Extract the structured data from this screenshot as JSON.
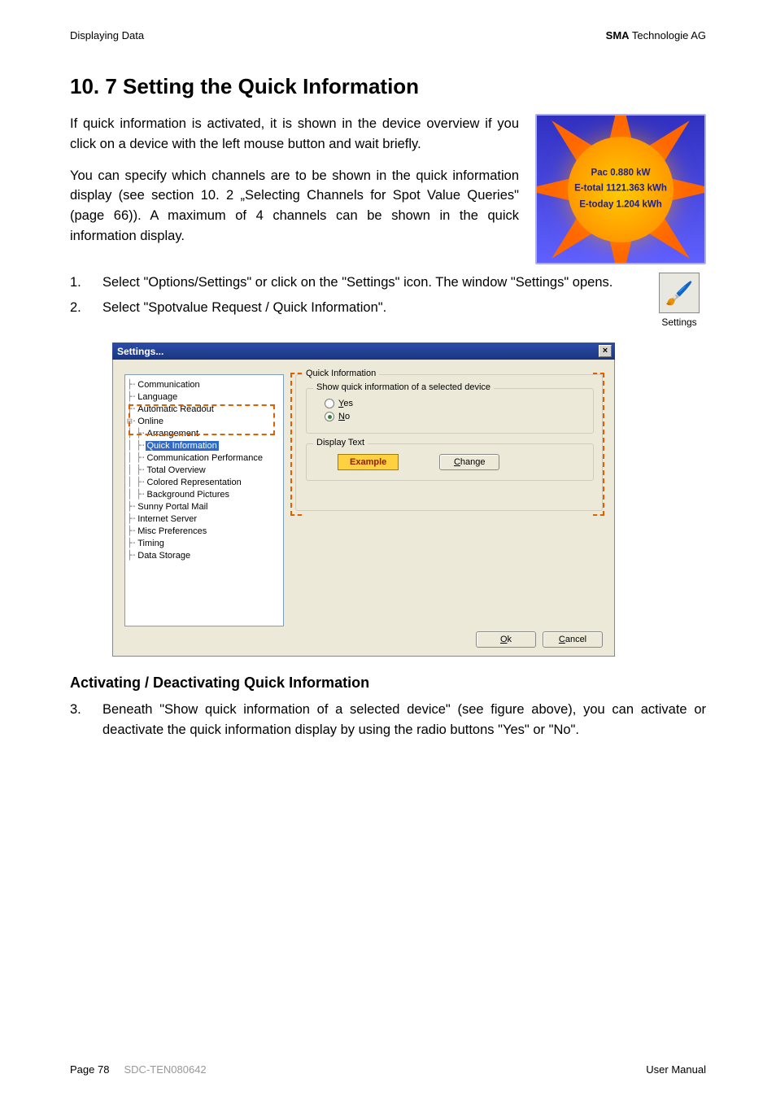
{
  "header": {
    "left": "Displaying Data",
    "right_bold": "SMA",
    "right_rest": " Technologie AG"
  },
  "heading": "10. 7 Setting the Quick Information",
  "para1": "If quick information is activated, it is shown in the device overview if you click on a device with the left mouse button and wait briefly.",
  "para2": "You can specify which channels are to be shown in the quick information display (see section 10. 2 „Selecting Channels for Spot Value Queries\" (page 66)). A maximum of 4 channels can be shown in the quick information display.",
  "sun": {
    "line1": "Pac 0.880 kW",
    "line2": "E-total 1121.363 kWh",
    "line3": "E-today 1.204 kWh",
    "bg_gradient_top": "#3030c0",
    "bg_gradient_bottom": "#6060ff",
    "sun_color": "#ff9900"
  },
  "steps": {
    "s1_num": "1.",
    "s1_text": "Select \"Options/Settings\" or click on the \"Settings\" icon. The window \"Settings\" opens.",
    "s2_num": "2.",
    "s2_text": "Select \"Spotvalue Request / Quick Information\"."
  },
  "settings_icon": {
    "emoji": "🖌️",
    "label": "Settings"
  },
  "dialog": {
    "title": "Settings...",
    "close_x": "×",
    "tree": {
      "items": [
        {
          "indent": 0,
          "label": "Communication",
          "sel": false
        },
        {
          "indent": 0,
          "label": "Language",
          "sel": false
        },
        {
          "indent": 0,
          "label": "Automatic Readout",
          "sel": false
        },
        {
          "indent": 0,
          "label": "Online",
          "sel": false,
          "expand": true
        },
        {
          "indent": 1,
          "label": "Arrangement",
          "sel": false
        },
        {
          "indent": 1,
          "label": "Quick Information",
          "sel": true
        },
        {
          "indent": 1,
          "label": "Communication Performance",
          "sel": false
        },
        {
          "indent": 1,
          "label": "Total Overview",
          "sel": false
        },
        {
          "indent": 1,
          "label": "Colored Representation",
          "sel": false
        },
        {
          "indent": 1,
          "label": "Background Pictures",
          "sel": false
        },
        {
          "indent": 0,
          "label": "Sunny Portal Mail",
          "sel": false
        },
        {
          "indent": 0,
          "label": "Internet Server",
          "sel": false
        },
        {
          "indent": 0,
          "label": "Misc Preferences",
          "sel": false
        },
        {
          "indent": 0,
          "label": "Timing",
          "sel": false
        },
        {
          "indent": 0,
          "label": "Data Storage",
          "sel": false
        }
      ]
    },
    "group1_title": "Quick Information",
    "group1_sub": "Show quick information of a selected device",
    "radio_yes": "Yes",
    "radio_no": "No",
    "group2_title": "Display Text",
    "example_label": "Example",
    "change_btn": "Change",
    "ok_btn": "Ok",
    "cancel_btn": "Cancel",
    "colors": {
      "titlebar": "#2d4ea8",
      "body_bg": "#ece9d8",
      "tree_border": "#7f9db9",
      "selection": "#316ac5",
      "highlight_box": "#e06000",
      "example_bg": "#ffd040"
    }
  },
  "subheading": "Activating / Deactivating Quick Information",
  "step3": {
    "num": "3.",
    "text": "Beneath \"Show quick information of a selected device\" (see figure above), you can activate or deactivate the quick information display by using the radio buttons \"Yes\" or \"No\"."
  },
  "footer": {
    "page": "Page 78",
    "doc": "SDC-TEN080642",
    "right": "User Manual"
  }
}
